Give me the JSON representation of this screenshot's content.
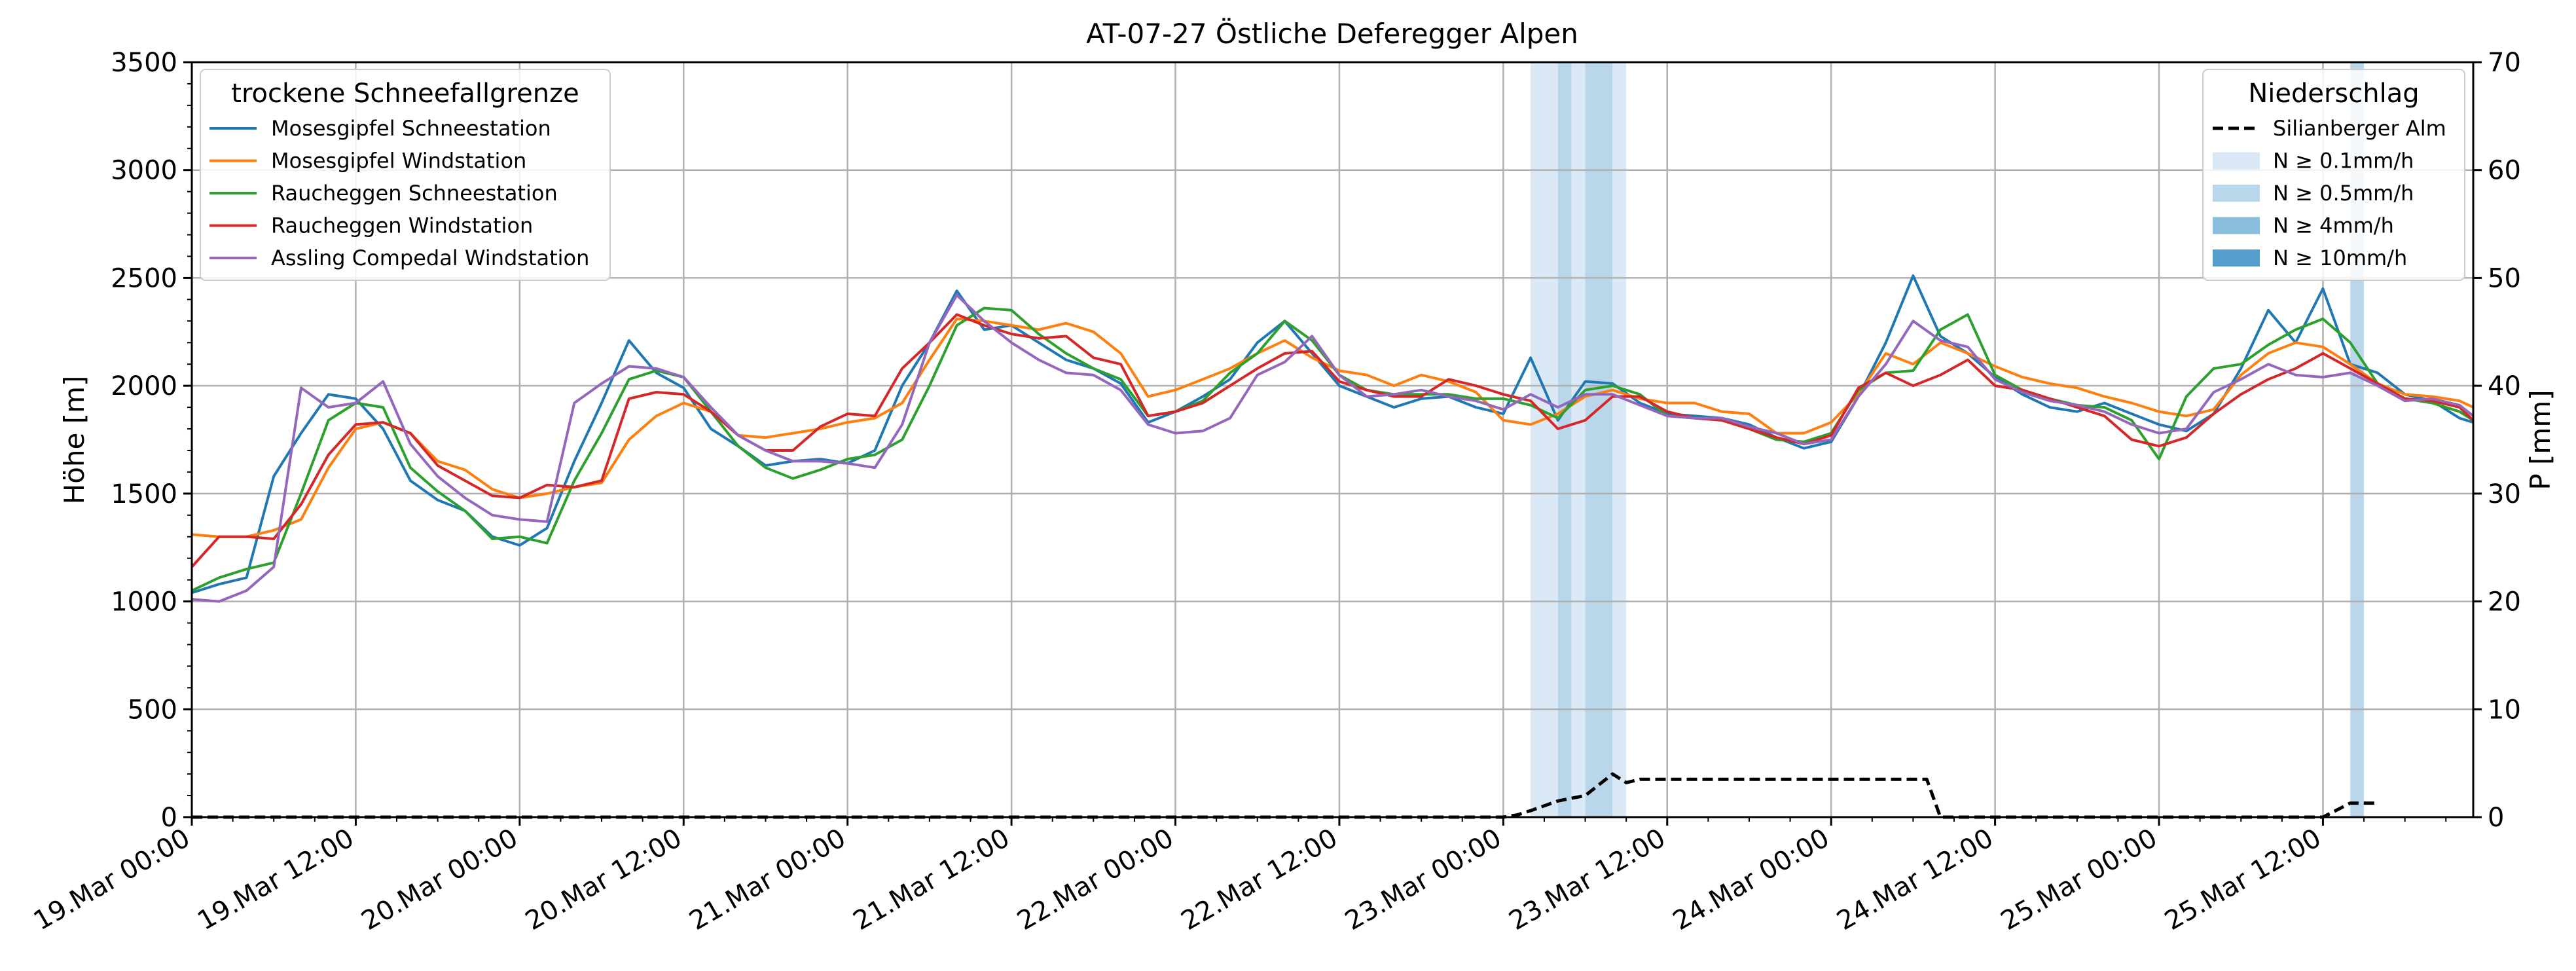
{
  "chart_data": {
    "type": "line",
    "title": "AT-07-27 Östliche Deferegger Alpen",
    "ylabel": "Höhe [m]",
    "y2label": "P [mm]",
    "ylim": [
      0,
      3500
    ],
    "y2lim": [
      0,
      70
    ],
    "xlim_hours": [
      0,
      167
    ],
    "yticks": [
      0,
      500,
      1000,
      1500,
      2000,
      2500,
      3000,
      3500
    ],
    "y2ticks": [
      0,
      10,
      20,
      30,
      40,
      50,
      60,
      70
    ],
    "xticks": [
      {
        "hour": 0,
        "label": "19.Mar 00:00"
      },
      {
        "hour": 12,
        "label": "19.Mar 12:00"
      },
      {
        "hour": 24,
        "label": "20.Mar 00:00"
      },
      {
        "hour": 36,
        "label": "20.Mar 12:00"
      },
      {
        "hour": 48,
        "label": "21.Mar 00:00"
      },
      {
        "hour": 60,
        "label": "21.Mar 12:00"
      },
      {
        "hour": 72,
        "label": "22.Mar 00:00"
      },
      {
        "hour": 84,
        "label": "22.Mar 12:00"
      },
      {
        "hour": 96,
        "label": "23.Mar 00:00"
      },
      {
        "hour": 108,
        "label": "23.Mar 12:00"
      },
      {
        "hour": 120,
        "label": "24.Mar 00:00"
      },
      {
        "hour": 132,
        "label": "24.Mar 12:00"
      },
      {
        "hour": 144,
        "label": "25.Mar 00:00"
      },
      {
        "hour": 156,
        "label": "25.Mar 12:00"
      }
    ],
    "grid": true,
    "legend_left": {
      "title": "trockene Schneefallgrenze",
      "placement": "top-left"
    },
    "legend_right": {
      "title": "Niederschlag",
      "placement": "top-right",
      "entries": [
        {
          "label": "Silianberger Alm",
          "type": "dashed-line",
          "color": "#000000"
        },
        {
          "label": "N ≥ 0.1mm/h",
          "type": "patch",
          "color": "#dbe9f6"
        },
        {
          "label": "N ≥ 0.5mm/h",
          "type": "patch",
          "color": "#bad6eb"
        },
        {
          "label": "N ≥ 4mm/h",
          "type": "patch",
          "color": "#89bedc"
        },
        {
          "label": "N ≥ 10mm/h",
          "type": "patch",
          "color": "#539ecd"
        }
      ]
    },
    "series": [
      {
        "name": "Mosesgipfel Schneestation",
        "color": "#1f77b4",
        "x": [
          0,
          2,
          4,
          6,
          8,
          10,
          12,
          14,
          16,
          18,
          20,
          22,
          24,
          26,
          28,
          30,
          32,
          34,
          36,
          38,
          40,
          42,
          44,
          46,
          48,
          50,
          52,
          54,
          56,
          58,
          60,
          62,
          64,
          66,
          68,
          70,
          72,
          74,
          76,
          78,
          80,
          82,
          84,
          86,
          88,
          90,
          92,
          94,
          96,
          98,
          100,
          102,
          104,
          106,
          108,
          110,
          112,
          114,
          116,
          118,
          120,
          122,
          124,
          126,
          128,
          130,
          132,
          134,
          136,
          138,
          140,
          142,
          144,
          146,
          148,
          150,
          152,
          154,
          156,
          158,
          160,
          162,
          164,
          166,
          167
        ],
        "values": [
          1040,
          1080,
          1110,
          1580,
          1780,
          1960,
          1940,
          1800,
          1560,
          1470,
          1420,
          1300,
          1260,
          1340,
          1650,
          1920,
          2210,
          2060,
          1990,
          1800,
          1720,
          1630,
          1650,
          1660,
          1640,
          1700,
          2000,
          2200,
          2440,
          2260,
          2280,
          2200,
          2120,
          2080,
          2010,
          1830,
          1880,
          1950,
          2030,
          2200,
          2300,
          2150,
          2000,
          1950,
          1900,
          1940,
          1950,
          1900,
          1870,
          2130,
          1840,
          2020,
          2010,
          1920,
          1870,
          1860,
          1850,
          1820,
          1760,
          1710,
          1740,
          1950,
          2200,
          2510,
          2230,
          2150,
          2040,
          1960,
          1900,
          1880,
          1920,
          1870,
          1820,
          1790,
          1870,
          2080,
          2350,
          2200,
          2450,
          2100,
          2060,
          1960,
          1930,
          1850,
          1830
        ]
      },
      {
        "name": "Mosesgipfel Windstation",
        "color": "#ff7f0e",
        "x": [
          0,
          2,
          4,
          6,
          8,
          10,
          12,
          14,
          16,
          18,
          20,
          22,
          24,
          26,
          28,
          30,
          32,
          34,
          36,
          38,
          40,
          42,
          44,
          46,
          48,
          50,
          52,
          54,
          56,
          58,
          60,
          62,
          64,
          66,
          68,
          70,
          72,
          74,
          76,
          78,
          80,
          82,
          84,
          86,
          88,
          90,
          92,
          94,
          96,
          98,
          100,
          102,
          104,
          106,
          108,
          110,
          112,
          114,
          116,
          118,
          120,
          122,
          124,
          126,
          128,
          130,
          132,
          134,
          136,
          138,
          140,
          142,
          144,
          146,
          148,
          150,
          152,
          154,
          156,
          158,
          160,
          162,
          164,
          166,
          167
        ],
        "values": [
          1310,
          1300,
          1300,
          1330,
          1380,
          1620,
          1800,
          1830,
          1780,
          1650,
          1610,
          1520,
          1480,
          1500,
          1530,
          1550,
          1750,
          1860,
          1920,
          1880,
          1770,
          1760,
          1780,
          1800,
          1830,
          1850,
          1920,
          2120,
          2310,
          2300,
          2280,
          2260,
          2290,
          2250,
          2150,
          1950,
          1980,
          2030,
          2080,
          2150,
          2210,
          2130,
          2070,
          2050,
          2000,
          2050,
          2020,
          1970,
          1840,
          1820,
          1870,
          1950,
          1980,
          1940,
          1920,
          1920,
          1880,
          1870,
          1780,
          1780,
          1830,
          1960,
          2150,
          2100,
          2200,
          2150,
          2090,
          2040,
          2010,
          1990,
          1950,
          1920,
          1880,
          1860,
          1890,
          2050,
          2150,
          2200,
          2180,
          2100,
          2010,
          1960,
          1950,
          1930,
          1900
        ]
      },
      {
        "name": "Raucheggen Schneestation",
        "color": "#2ca02c",
        "x": [
          0,
          2,
          4,
          6,
          8,
          10,
          12,
          14,
          16,
          18,
          20,
          22,
          24,
          26,
          28,
          30,
          32,
          34,
          36,
          38,
          40,
          42,
          44,
          46,
          48,
          50,
          52,
          54,
          56,
          58,
          60,
          62,
          64,
          66,
          68,
          70,
          72,
          74,
          76,
          78,
          80,
          82,
          84,
          86,
          88,
          90,
          92,
          94,
          96,
          98,
          100,
          102,
          104,
          106,
          108,
          110,
          112,
          114,
          116,
          118,
          120,
          122,
          124,
          126,
          128,
          130,
          132,
          134,
          136,
          138,
          140,
          142,
          144,
          146,
          148,
          150,
          152,
          154,
          156,
          158,
          160,
          162,
          164,
          166,
          167
        ],
        "values": [
          1050,
          1110,
          1150,
          1180,
          1500,
          1840,
          1920,
          1900,
          1620,
          1510,
          1420,
          1290,
          1300,
          1270,
          1560,
          1780,
          2030,
          2070,
          2040,
          1880,
          1720,
          1620,
          1570,
          1610,
          1660,
          1680,
          1750,
          2000,
          2280,
          2360,
          2350,
          2240,
          2150,
          2080,
          2030,
          1860,
          1880,
          1930,
          2060,
          2150,
          2300,
          2210,
          2050,
          1980,
          1960,
          1960,
          1960,
          1940,
          1940,
          1910,
          1850,
          1980,
          2000,
          1960,
          1860,
          1850,
          1840,
          1800,
          1750,
          1740,
          1780,
          1980,
          2060,
          2070,
          2260,
          2330,
          2050,
          1980,
          1940,
          1910,
          1900,
          1840,
          1660,
          1950,
          2080,
          2100,
          2190,
          2260,
          2310,
          2200,
          2010,
          1940,
          1920,
          1880,
          1840
        ]
      },
      {
        "name": "Raucheggen Windstation",
        "color": "#d62728",
        "x": [
          0,
          2,
          4,
          6,
          8,
          10,
          12,
          14,
          16,
          18,
          20,
          22,
          24,
          26,
          28,
          30,
          32,
          34,
          36,
          38,
          40,
          42,
          44,
          46,
          48,
          50,
          52,
          54,
          56,
          58,
          60,
          62,
          64,
          66,
          68,
          70,
          72,
          74,
          76,
          78,
          80,
          82,
          84,
          86,
          88,
          90,
          92,
          94,
          96,
          98,
          100,
          102,
          104,
          106,
          108,
          110,
          112,
          114,
          116,
          118,
          120,
          122,
          124,
          126,
          128,
          130,
          132,
          134,
          136,
          138,
          140,
          142,
          144,
          146,
          148,
          150,
          152,
          154,
          156,
          158,
          160,
          162,
          164,
          166,
          167
        ],
        "values": [
          1160,
          1300,
          1300,
          1290,
          1450,
          1680,
          1820,
          1830,
          1780,
          1630,
          1560,
          1490,
          1480,
          1540,
          1530,
          1560,
          1940,
          1970,
          1960,
          1880,
          1770,
          1700,
          1700,
          1810,
          1870,
          1860,
          2080,
          2200,
          2330,
          2280,
          2240,
          2220,
          2230,
          2130,
          2100,
          1860,
          1880,
          1920,
          2000,
          2080,
          2150,
          2160,
          2020,
          1980,
          1950,
          1950,
          2030,
          2000,
          1960,
          1930,
          1800,
          1840,
          1950,
          1950,
          1880,
          1850,
          1840,
          1800,
          1760,
          1730,
          1770,
          1990,
          2060,
          2000,
          2050,
          2120,
          2000,
          1980,
          1940,
          1900,
          1860,
          1750,
          1720,
          1760,
          1870,
          1960,
          2030,
          2080,
          2150,
          2080,
          2010,
          1940,
          1930,
          1900,
          1840
        ]
      },
      {
        "name": "Assling Compedal Windstation",
        "color": "#9467bd",
        "x": [
          0,
          2,
          4,
          6,
          8,
          10,
          12,
          14,
          16,
          18,
          20,
          22,
          24,
          26,
          28,
          30,
          32,
          34,
          36,
          38,
          40,
          42,
          44,
          46,
          48,
          50,
          52,
          54,
          56,
          58,
          60,
          62,
          64,
          66,
          68,
          70,
          72,
          74,
          76,
          78,
          80,
          82,
          84,
          86,
          88,
          90,
          92,
          94,
          96,
          98,
          100,
          102,
          104,
          106,
          108,
          110,
          112,
          114,
          116,
          118,
          120,
          122,
          124,
          126,
          128,
          130,
          132,
          134,
          136,
          138,
          140,
          142,
          144,
          146,
          148,
          150,
          152,
          154,
          156,
          158,
          160,
          162,
          164,
          166,
          167
        ],
        "values": [
          1010,
          1000,
          1050,
          1160,
          1990,
          1900,
          1920,
          2020,
          1730,
          1580,
          1480,
          1400,
          1380,
          1370,
          1920,
          2010,
          2090,
          2080,
          2040,
          1900,
          1770,
          1700,
          1650,
          1650,
          1640,
          1620,
          1820,
          2200,
          2420,
          2300,
          2200,
          2120,
          2060,
          2050,
          1980,
          1820,
          1780,
          1790,
          1850,
          2050,
          2110,
          2230,
          2050,
          1950,
          1960,
          1980,
          1950,
          1930,
          1890,
          1960,
          1900,
          1960,
          1960,
          1910,
          1860,
          1850,
          1850,
          1810,
          1780,
          1730,
          1750,
          1950,
          2100,
          2300,
          2210,
          2180,
          2030,
          1970,
          1930,
          1910,
          1880,
          1820,
          1780,
          1800,
          1970,
          2030,
          2100,
          2050,
          2040,
          2060,
          2000,
          1930,
          1940,
          1910,
          1860
        ]
      },
      {
        "name": "Silianberger Alm",
        "axis": "right",
        "style": "dashed",
        "color": "#000000",
        "x": [
          0,
          96,
          97,
          98,
          100,
          102,
          103,
          104,
          105,
          106,
          110,
          114,
          120,
          126,
          127,
          128,
          129,
          130,
          132,
          144,
          156,
          158,
          160
        ],
        "values": [
          0,
          0,
          0.2,
          0.6,
          1.5,
          2.0,
          3.0,
          4.0,
          3.2,
          3.5,
          3.5,
          3.5,
          3.5,
          3.5,
          3.5,
          0,
          0,
          0,
          0,
          0,
          0,
          1.3,
          1.3
        ]
      }
    ],
    "precip_bands": [
      {
        "start": 98.0,
        "end": 100.0,
        "level": "N ≥ 0.1mm/h"
      },
      {
        "start": 100.0,
        "end": 101.0,
        "level": "N ≥ 0.5mm/h"
      },
      {
        "start": 101.0,
        "end": 102.0,
        "level": "N ≥ 0.1mm/h"
      },
      {
        "start": 102.0,
        "end": 104.0,
        "level": "N ≥ 0.5mm/h"
      },
      {
        "start": 104.0,
        "end": 105.0,
        "level": "N ≥ 0.1mm/h"
      },
      {
        "start": 158.0,
        "end": 159.0,
        "level": "N ≥ 0.5mm/h"
      }
    ]
  }
}
